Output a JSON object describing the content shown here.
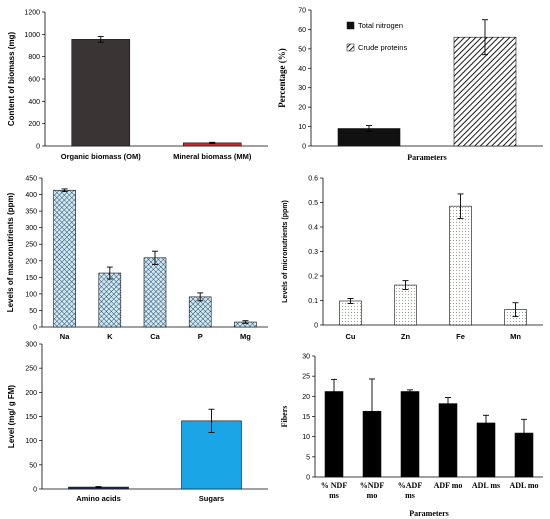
{
  "chart_data": [
    {
      "id": "p1",
      "type": "bar",
      "categories": [
        "Organic biomass (OM)",
        "Mineral biomass (MM)"
      ],
      "values": [
        955,
        28
      ],
      "errors": [
        25,
        5
      ],
      "ylabel": "Content of biomass (mg)",
      "ylim": [
        0,
        1200
      ],
      "yticks": [
        "0",
        "200",
        "400",
        "600",
        "800",
        "1000",
        "1200"
      ],
      "grid": false,
      "fills": [
        "#3b3435",
        "#c8282e"
      ]
    },
    {
      "id": "p2",
      "type": "bar",
      "categories": [
        "Total nitrogen",
        "Crude proteins"
      ],
      "values": [
        9,
        56
      ],
      "errors": [
        1.5,
        9
      ],
      "xlabel": "Parameters",
      "ylabel": "Percentage (%)",
      "ylim": [
        0,
        70
      ],
      "yticks": [
        "0",
        "10",
        "20",
        "30",
        "40",
        "50",
        "60",
        "70"
      ],
      "grid": false,
      "legend": {
        "position": "top-left",
        "entries": [
          "Total nitrogen",
          "Crude proteins"
        ]
      }
    },
    {
      "id": "p3",
      "type": "bar",
      "categories": [
        "Na",
        "K",
        "Ca",
        "P",
        "Mg"
      ],
      "values": [
        413,
        163,
        209,
        91,
        15
      ],
      "errors": [
        4,
        18,
        20,
        12,
        4
      ],
      "ylabel": "Levels of macronutrients (ppm)",
      "ylim": [
        0,
        450
      ],
      "yticks": [
        "0",
        "50",
        "100",
        "150",
        "200",
        "250",
        "300",
        "350",
        "400",
        "450"
      ],
      "grid": false
    },
    {
      "id": "p4",
      "type": "bar",
      "categories": [
        "Cu",
        "Zn",
        "Fe",
        "Mn"
      ],
      "values": [
        0.098,
        0.163,
        0.485,
        0.063
      ],
      "errors": [
        0.01,
        0.018,
        0.05,
        0.028
      ],
      "ylabel": "Levels of micronutrients (ppm)",
      "ylim": [
        0,
        0.6
      ],
      "yticks": [
        "0",
        "0.1",
        "0.2",
        "0.3",
        "0.4",
        "0.5",
        "0.6"
      ],
      "grid": false
    },
    {
      "id": "p5",
      "type": "bar",
      "categories": [
        "Amino acids",
        "Sugars"
      ],
      "values": [
        4,
        141
      ],
      "errors": [
        1,
        24
      ],
      "ylabel": "Level (mg/ g FM)",
      "ylim": [
        0,
        300
      ],
      "yticks": [
        "0",
        "50",
        "100",
        "150",
        "200",
        "250",
        "300"
      ],
      "grid": false,
      "fills": [
        "#1c2a55",
        "#1aa6e6"
      ]
    },
    {
      "id": "p6",
      "type": "bar",
      "categories": [
        [
          "% NDF",
          "ms"
        ],
        [
          "%NDF",
          "mo"
        ],
        [
          "%ADF",
          "ms"
        ],
        [
          "ADF mo"
        ],
        [
          "ADL ms"
        ],
        [
          "ADL mo"
        ]
      ],
      "values": [
        21.2,
        16.3,
        21.2,
        18.2,
        13.4,
        10.9
      ],
      "errors": [
        3.0,
        8.0,
        0.4,
        1.5,
        1.9,
        3.4
      ],
      "xlabel": "Parameters",
      "ylabel": "Fibers",
      "ylim": [
        0,
        30
      ],
      "yticks": [
        "0",
        "5",
        "10",
        "15",
        "20",
        "25",
        "30"
      ],
      "grid": false
    }
  ]
}
